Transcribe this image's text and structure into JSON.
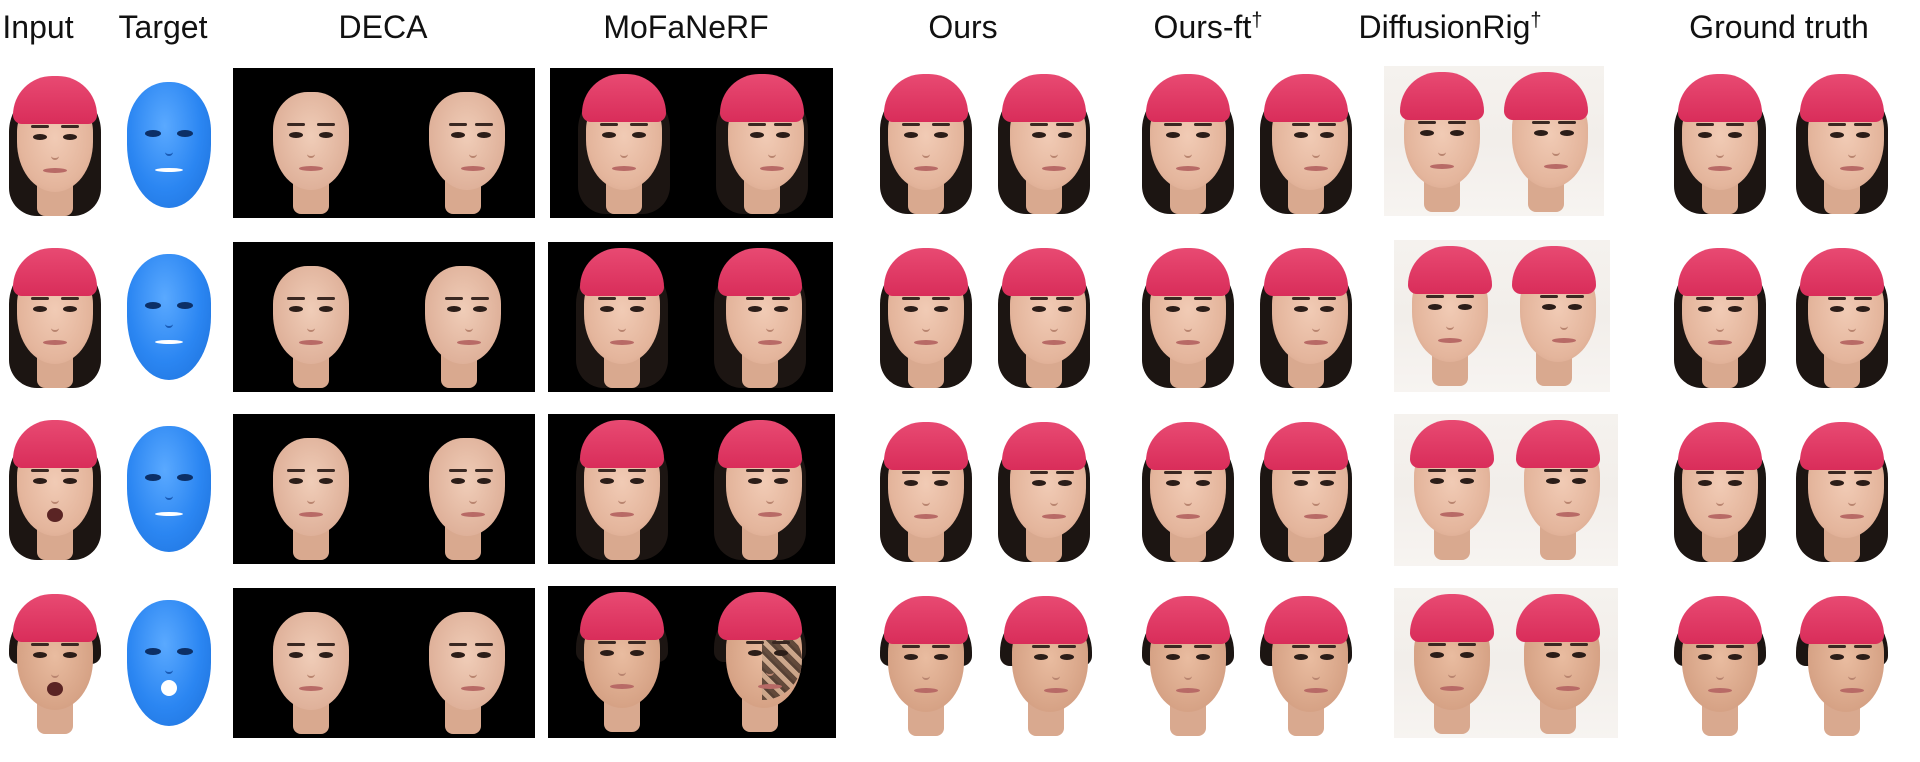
{
  "headers": {
    "input": "Input",
    "target": "Target",
    "deca": "DECA",
    "mofanerf": "MoFaNeRF",
    "ours": "Ours",
    "ours_ft": "Ours-ft",
    "ours_ft_mark": "†",
    "diffusionrig": "DiffusionRig",
    "diffusionrig_mark": "†",
    "ground_truth": "Ground truth"
  },
  "colors": {
    "cap": "#d92d5a",
    "avatar": "#2b86f2",
    "deca_bg": "#000000",
    "mofanerf_bg": "#000000",
    "diffusionrig_bg": "#f2eeea"
  },
  "icons": {
    "target_avatar": "blue-3d-face-mesh",
    "face_photo": "rendered-face-image"
  }
}
